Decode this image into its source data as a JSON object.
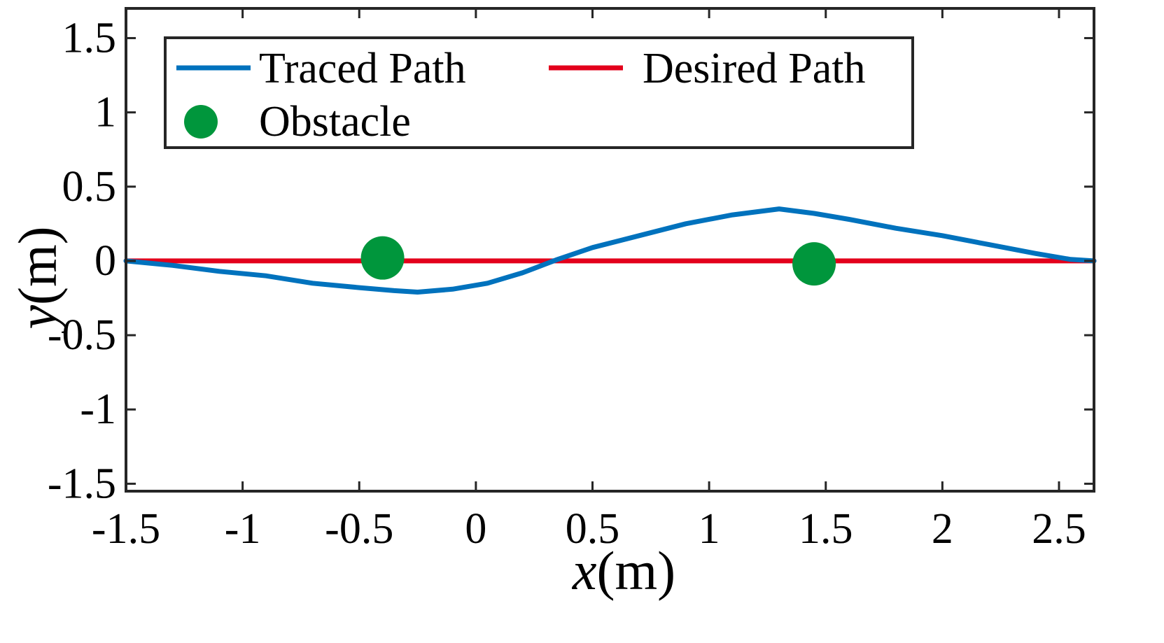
{
  "chart_data": {
    "type": "line",
    "title": "",
    "xlabel": "x(m)",
    "ylabel": "y(m)",
    "xlabel_var": "x",
    "xlabel_unit": "(m)",
    "ylabel_var": "y",
    "ylabel_unit": "(m)",
    "xlim": [
      -1.5,
      2.65
    ],
    "ylim": [
      -1.55,
      1.7
    ],
    "xticks": [
      -1.5,
      -1,
      -0.5,
      0,
      0.5,
      1,
      1.5,
      2,
      2.5
    ],
    "xtick_labels": [
      "-1.5",
      "-1",
      "-0.5",
      "0",
      "0.5",
      "1",
      "1.5",
      "2",
      "2.5"
    ],
    "yticks": [
      -1.5,
      -1,
      -0.5,
      0,
      0.5,
      1,
      1.5
    ],
    "ytick_labels": [
      "-1.5",
      "-1",
      "-0.5",
      "0",
      "0.5",
      "1",
      "1.5"
    ],
    "grid": false,
    "legend_position": "top-left",
    "series": [
      {
        "name": "Traced Path",
        "kind": "line",
        "color": "#0072BD",
        "x": [
          -1.5,
          -1.3,
          -1.1,
          -0.9,
          -0.7,
          -0.5,
          -0.35,
          -0.25,
          -0.1,
          0.05,
          0.2,
          0.35,
          0.5,
          0.7,
          0.9,
          1.1,
          1.3,
          1.45,
          1.6,
          1.8,
          2.0,
          2.2,
          2.4,
          2.55,
          2.65
        ],
        "y": [
          0.0,
          -0.03,
          -0.07,
          -0.1,
          -0.15,
          -0.18,
          -0.2,
          -0.21,
          -0.19,
          -0.15,
          -0.08,
          0.01,
          0.09,
          0.17,
          0.25,
          0.31,
          0.35,
          0.32,
          0.28,
          0.22,
          0.17,
          0.11,
          0.05,
          0.01,
          0.0
        ]
      },
      {
        "name": "Desired Path",
        "kind": "line",
        "color": "#E3001B",
        "x": [
          -1.5,
          2.65
        ],
        "y": [
          0.0,
          0.0
        ]
      },
      {
        "name": "Obstacle",
        "kind": "scatter",
        "color": "#00963C",
        "x": [
          -0.4,
          1.45
        ],
        "y": [
          0.02,
          -0.02
        ]
      }
    ]
  }
}
